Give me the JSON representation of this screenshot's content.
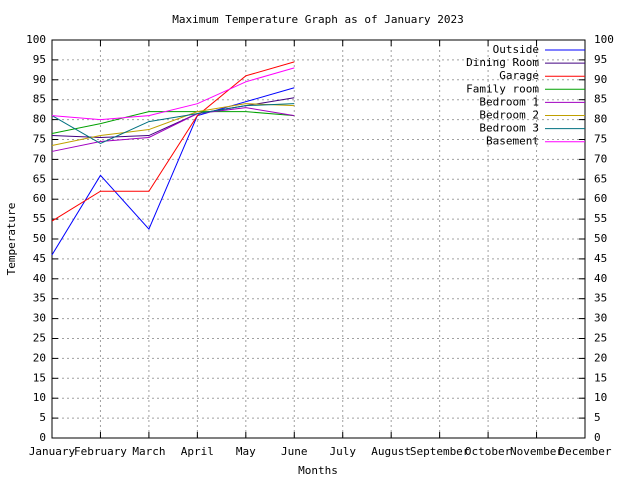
{
  "chart_data": {
    "type": "line",
    "title": "Maximum Temperature Graph as of January 2023",
    "xlabel": "Months",
    "ylabel": "Temperature",
    "categories": [
      "January",
      "February",
      "March",
      "April",
      "May",
      "June",
      "July",
      "August",
      "September",
      "October",
      "November",
      "December"
    ],
    "series": [
      {
        "name": "Outside",
        "color": "#0000ff",
        "values": [
          46,
          66,
          52.5,
          81,
          84.5,
          88,
          null,
          null,
          null,
          null,
          null,
          null
        ]
      },
      {
        "name": "Dining Room",
        "color": "#400080",
        "values": [
          76,
          75.5,
          76,
          81.5,
          83.5,
          85.5,
          null,
          null,
          null,
          null,
          null,
          null
        ]
      },
      {
        "name": "Garage",
        "color": "#ff0000",
        "values": [
          54.5,
          62,
          62,
          81,
          91,
          94.5,
          null,
          null,
          null,
          null,
          null,
          null
        ]
      },
      {
        "name": "Family room",
        "color": "#00a000",
        "values": [
          76.5,
          79,
          82,
          82,
          82,
          81,
          null,
          null,
          null,
          null,
          null,
          null
        ]
      },
      {
        "name": "Bedroom 1",
        "color": "#a000c0",
        "values": [
          72,
          74.5,
          75.5,
          81.5,
          83,
          81,
          null,
          null,
          null,
          null,
          null,
          null
        ]
      },
      {
        "name": "Bedroom 2",
        "color": "#c0a000",
        "values": [
          73.5,
          76,
          77.5,
          82,
          84,
          83.5,
          null,
          null,
          null,
          null,
          null,
          null
        ]
      },
      {
        "name": "Bedroom 3",
        "color": "#007080",
        "values": [
          81,
          74,
          79.5,
          81.5,
          83.5,
          84,
          null,
          null,
          null,
          null,
          null,
          null
        ]
      },
      {
        "name": "Basement",
        "color": "#ff00ff",
        "values": [
          81,
          80,
          81,
          84,
          89.5,
          93,
          null,
          null,
          null,
          null,
          null,
          null
        ]
      }
    ],
    "ylim": [
      0,
      100
    ],
    "yticks": [
      0,
      5,
      10,
      15,
      20,
      25,
      30,
      35,
      40,
      45,
      50,
      55,
      60,
      65,
      70,
      75,
      80,
      85,
      90,
      95,
      100
    ],
    "y2lim": [
      0,
      100
    ],
    "y2ticks": [
      0,
      5,
      10,
      15,
      20,
      25,
      30,
      35,
      40,
      45,
      50,
      55,
      60,
      65,
      70,
      75,
      80,
      85,
      90,
      95,
      100
    ],
    "grid": true,
    "legend": "upper right"
  }
}
